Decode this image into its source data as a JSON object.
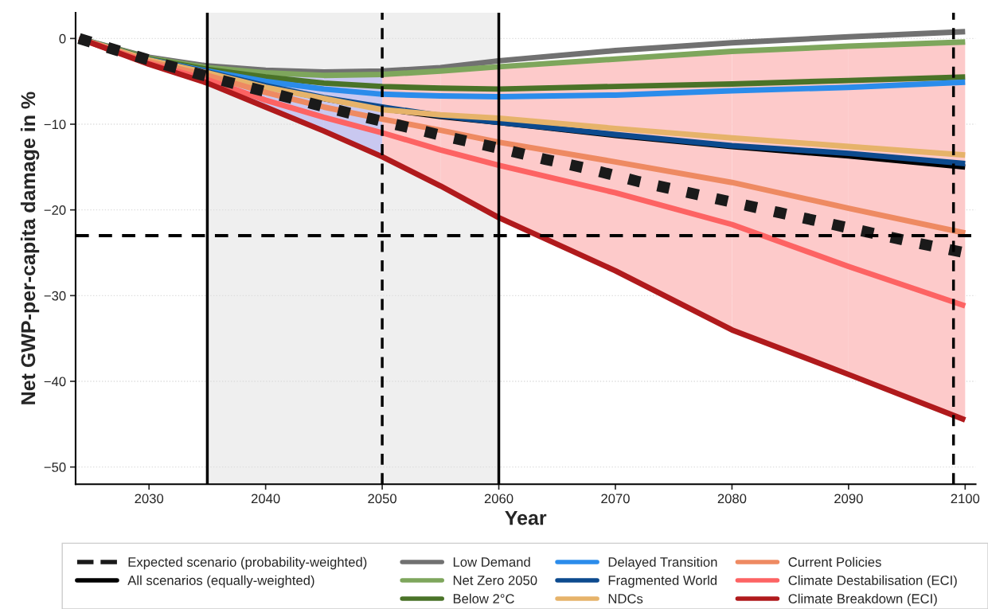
{
  "chart_data": {
    "type": "line",
    "xlabel": "Year",
    "ylabel": "Net GWP-per-capita damage in %",
    "x": [
      2024,
      2030,
      2035,
      2040,
      2045,
      2050,
      2055,
      2060,
      2070,
      2080,
      2090,
      2100
    ],
    "xlim": [
      2023.7,
      2100.9
    ],
    "xticks": [
      2030,
      2040,
      2050,
      2060,
      2070,
      2080,
      2090,
      2100
    ],
    "ylim": [
      -52,
      3
    ],
    "yticks": [
      -50,
      -40,
      -30,
      -20,
      -10,
      0
    ],
    "grid": "y",
    "legend": "bottom",
    "bands": [
      {
        "axis": "x",
        "from": 2035,
        "to": 2060,
        "color": "#efefef"
      }
    ],
    "ref_lines": [
      {
        "axis": "y",
        "value": -23,
        "color": "#000000",
        "line_style": "dashed"
      },
      {
        "axis": "x",
        "value": 2035,
        "color": "#000000",
        "line_style": "solid"
      },
      {
        "axis": "x",
        "value": 2050,
        "color": "#000000",
        "line_style": "dashed"
      },
      {
        "axis": "x",
        "value": 2060,
        "color": "#000000",
        "line_style": "solid"
      },
      {
        "axis": "x",
        "value": 2099,
        "color": "#000000",
        "line_style": "dashed"
      }
    ],
    "series": [
      {
        "name": "All scenarios (equally-weighted)",
        "color": "#000000",
        "line_style": "solid",
        "values": [
          0,
          -2.6,
          -4.0,
          -5.6,
          -7.0,
          -8.2,
          -9.1,
          -9.8,
          -11.3,
          -12.6,
          -13.7,
          -15.0
        ],
        "lower": [
          null,
          null,
          null,
          null,
          null,
          -13.8,
          -17.2,
          -20.9,
          -27.1,
          -34,
          -39.2,
          -44.5
        ],
        "upper": [
          null,
          null,
          null,
          null,
          null,
          -4.2,
          -3.8,
          -3.3,
          -2.4,
          -1.5,
          -0.9,
          -0.4
        ],
        "colors": [
          null,
          null,
          null,
          null,
          null,
          "#fdcaca",
          "#fdcaca",
          "#fdcaca",
          "#fdcaca",
          "#fdcaca",
          "#fdcaca",
          null
        ]
      },
      {
        "name": "Low Demand",
        "color": "#717171",
        "line_style": "solid",
        "values": [
          0,
          -2.2,
          -3.2,
          -3.7,
          -3.9,
          -3.8,
          -3.4,
          -2.6,
          -1.4,
          -0.5,
          0.2,
          0.8
        ]
      },
      {
        "name": "Net Zero 2050",
        "color": "#7ea65c",
        "line_style": "solid",
        "values": [
          0,
          -2.3,
          -3.4,
          -4.0,
          -4.3,
          -4.2,
          -3.8,
          -3.3,
          -2.4,
          -1.5,
          -0.9,
          -0.4
        ]
      },
      {
        "name": "Below 2°C",
        "color": "#4a7328",
        "line_style": "solid",
        "values": [
          0,
          -2.4,
          -3.6,
          -4.5,
          -5.2,
          -5.6,
          -5.8,
          -5.9,
          -5.6,
          -5.3,
          -4.9,
          -4.5
        ]
      },
      {
        "name": "Delayed Transition",
        "color": "#2b8ceb",
        "line_style": "solid",
        "values": [
          0,
          -2.5,
          -3.8,
          -5.0,
          -5.9,
          -6.5,
          -6.7,
          -6.8,
          -6.6,
          -6.1,
          -5.7,
          -5.1
        ]
      },
      {
        "name": "Fragmented World",
        "color": "#0c4a8e",
        "line_style": "solid",
        "values": [
          0,
          -2.5,
          -3.9,
          -5.5,
          -6.9,
          -8.0,
          -9.0,
          -9.8,
          -11.2,
          -12.5,
          -13.4,
          -14.6
        ]
      },
      {
        "name": "NDCs",
        "color": "#e6b36a",
        "line_style": "solid",
        "values": [
          0,
          -2.5,
          -4.0,
          -5.7,
          -7.0,
          -8.3,
          -8.9,
          -9.3,
          -10.5,
          -11.6,
          -12.6,
          -13.6
        ]
      },
      {
        "name": "Current Policies",
        "color": "#ee8a62",
        "line_style": "solid",
        "values": [
          0,
          -2.7,
          -4.3,
          -6.3,
          -8.0,
          -9.4,
          -10.7,
          -12.1,
          -14.4,
          -16.8,
          -19.8,
          -22.7
        ]
      },
      {
        "name": "Climate Destabilisation (ECI)",
        "color": "#fd6363",
        "line_style": "solid",
        "values": [
          0,
          -2.9,
          -4.8,
          -7.2,
          -9.2,
          -11.0,
          -13.0,
          -14.8,
          -18.0,
          -21.7,
          -26.6,
          -31.2
        ]
      },
      {
        "name": "Climate Breakdown (ECI)",
        "color": "#b01a1c",
        "line_style": "solid",
        "values": [
          0,
          -3.0,
          -5.2,
          -8.0,
          -10.8,
          -13.8,
          -17.2,
          -20.9,
          -27.1,
          -34.0,
          -39.2,
          -44.5
        ],
        "lower": [
          null,
          null,
          -5.2,
          -8.0,
          -10.8,
          -13.8,
          null,
          null,
          null,
          null,
          null,
          null
        ],
        "upper": [
          null,
          null,
          -3.4,
          -4.0,
          -4.3,
          -4.2,
          null,
          null,
          null,
          null,
          null,
          null
        ],
        "colors": [
          null,
          null,
          "#c9c8f0",
          "#c9c8f0",
          "#c9c8f0",
          null,
          null,
          null,
          null,
          null,
          null,
          null
        ]
      },
      {
        "name": "Expected scenario (probability-weighted)",
        "color": "#1a1a1a",
        "line_style": "dotted",
        "x": [
          2024,
          2028,
          2032,
          2036,
          2040,
          2044,
          2048,
          2052,
          2056,
          2060,
          2064,
          2068,
          2072,
          2076,
          2080,
          2084,
          2088,
          2092,
          2096,
          2100
        ],
        "values": [
          0,
          -1.7,
          -3.3,
          -4.8,
          -6.2,
          -7.6,
          -9.0,
          -10.3,
          -11.6,
          -12.8,
          -14.1,
          -15.3,
          -16.7,
          -17.9,
          -19.1,
          -20.3,
          -21.5,
          -22.7,
          -23.9,
          -25.0
        ]
      }
    ]
  }
}
